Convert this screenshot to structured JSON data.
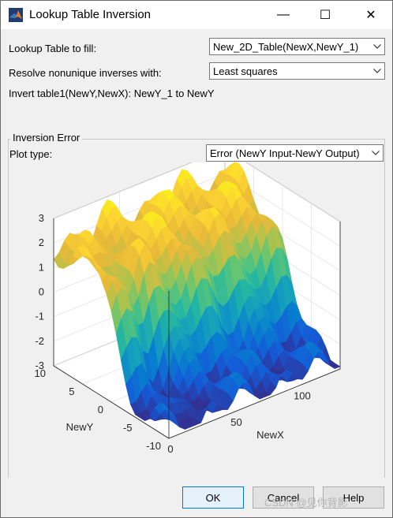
{
  "window": {
    "title": "Lookup Table Inversion",
    "minimize": "—",
    "maximize": "☐",
    "close": "✕"
  },
  "form": {
    "table_label": "Lookup Table to fill:",
    "table_value": "New_2D_Table(NewX,NewY_1)",
    "resolve_label": "Resolve nonunique inverses with:",
    "resolve_value": "Least squares",
    "invert_text": "Invert table1(NewY,NewX): NewY_1 to NewY"
  },
  "inversion": {
    "group_title": "Inversion Error",
    "plot_type_label": "Plot type:",
    "plot_type_value": "Error (NewY Input-NewY Output)"
  },
  "chart_data": {
    "type": "surface",
    "title": "",
    "xlabel": "NewX",
    "ylabel": "NewY",
    "zlabel": "",
    "xlim": [
      0,
      130
    ],
    "ylim": [
      -10,
      10
    ],
    "zlim": [
      -3,
      3
    ],
    "x_ticks": [
      "0",
      "50",
      "100"
    ],
    "y_ticks": [
      "10",
      "5",
      "0",
      "-5",
      "-10"
    ],
    "z_ticks": [
      "3",
      "2",
      "1",
      "0",
      "-1",
      "-2",
      "-3"
    ],
    "colormap": "parula",
    "grid": true
  },
  "buttons": {
    "ok": "OK",
    "cancel": "Cancel",
    "help": "Help"
  },
  "watermark": "CSDN @见你背影"
}
